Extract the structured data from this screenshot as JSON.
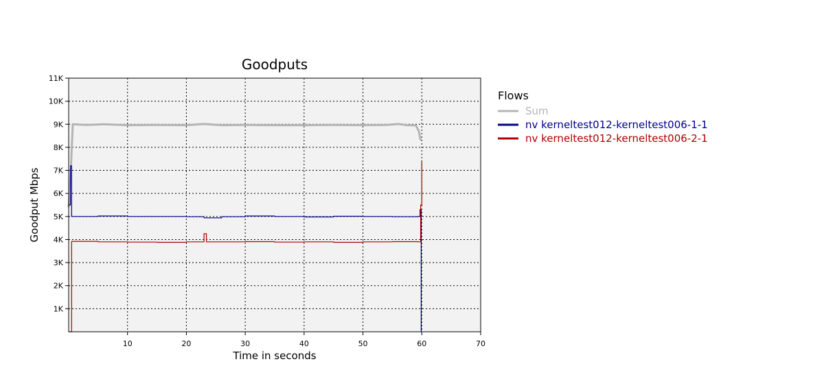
{
  "chart_data": {
    "type": "line",
    "title": "Goodputs",
    "xlabel": "Time in seconds",
    "ylabel": "Goodput Mbps",
    "xlim": [
      0,
      70
    ],
    "ylim": [
      0,
      11000
    ],
    "grid": true,
    "x_ticks": [
      10,
      20,
      30,
      40,
      50,
      60,
      70
    ],
    "x_tick_labels": [
      "10",
      "20",
      "30",
      "40",
      "50",
      "60",
      "70"
    ],
    "y_ticks": [
      1000,
      2000,
      3000,
      4000,
      5000,
      6000,
      7000,
      8000,
      9000,
      10000,
      11000
    ],
    "y_tick_labels": [
      "1K",
      "2K",
      "3K",
      "4K",
      "5K",
      "6K",
      "7K",
      "8K",
      "9K",
      "10K",
      "11K"
    ],
    "legend": {
      "title": "Flows",
      "placement": "right"
    },
    "series": [
      {
        "name": "Sum",
        "color": "#b4b4b4",
        "step": false,
        "points": [
          [
            0.0,
            5400
          ],
          [
            0.4,
            7200
          ],
          [
            0.7,
            9000
          ],
          [
            3,
            8970
          ],
          [
            6,
            9000
          ],
          [
            10,
            8960
          ],
          [
            15,
            8970
          ],
          [
            20,
            8960
          ],
          [
            23,
            9010
          ],
          [
            26,
            8960
          ],
          [
            30,
            8970
          ],
          [
            35,
            8960
          ],
          [
            40,
            8960
          ],
          [
            45,
            8970
          ],
          [
            50,
            8960
          ],
          [
            54,
            8970
          ],
          [
            56,
            9010
          ],
          [
            57.5,
            8960
          ],
          [
            59.0,
            8950
          ],
          [
            59.5,
            8700
          ],
          [
            59.8,
            8300
          ]
        ]
      },
      {
        "name": "nv kerneltest012-kerneltest006-1-1",
        "color": "#00008b",
        "step": true,
        "points": [
          [
            0.0,
            5500
          ],
          [
            0.3,
            7200
          ],
          [
            0.5,
            5000
          ],
          [
            5,
            5020
          ],
          [
            10,
            5000
          ],
          [
            15,
            5000
          ],
          [
            20,
            4990
          ],
          [
            23,
            4940
          ],
          [
            26,
            4990
          ],
          [
            30,
            5020
          ],
          [
            35,
            5000
          ],
          [
            40,
            4980
          ],
          [
            45,
            5010
          ],
          [
            50,
            5000
          ],
          [
            55,
            4990
          ],
          [
            59.3,
            5000
          ],
          [
            59.5,
            5000
          ],
          [
            59.7,
            5300
          ],
          [
            59.9,
            0
          ]
        ]
      },
      {
        "name": "nv kerneltest012-kerneltest006-2-1",
        "color": "#b00000",
        "step": true,
        "points": [
          [
            0.0,
            0
          ],
          [
            0.3,
            0
          ],
          [
            0.5,
            3920
          ],
          [
            5,
            3900
          ],
          [
            10,
            3890
          ],
          [
            15,
            3880
          ],
          [
            20,
            3900
          ],
          [
            23,
            4250
          ],
          [
            23.4,
            3900
          ],
          [
            30,
            3910
          ],
          [
            35,
            3890
          ],
          [
            40,
            3900
          ],
          [
            45,
            3880
          ],
          [
            50,
            3900
          ],
          [
            55,
            3910
          ],
          [
            59.3,
            3900
          ],
          [
            59.6,
            3900
          ],
          [
            59.8,
            5500
          ],
          [
            60.0,
            7400
          ]
        ]
      }
    ]
  }
}
